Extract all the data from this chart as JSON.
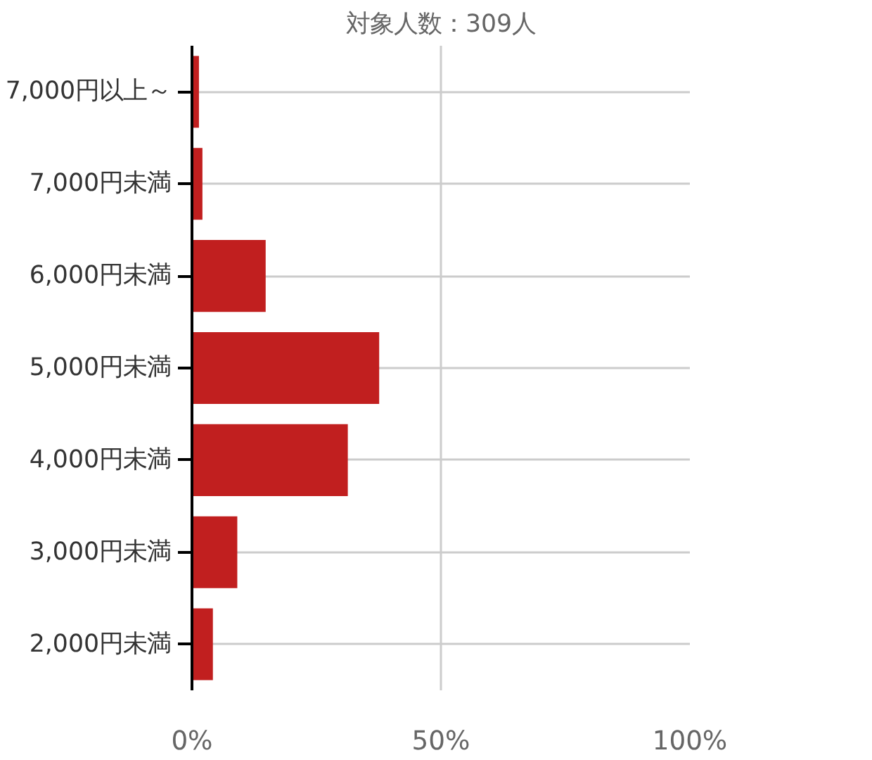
{
  "chart_data": {
    "type": "bar",
    "orientation": "horizontal",
    "title": "対象人数：309人",
    "categories": [
      "7,000円以上～",
      "7,000円未満",
      "6,000円未満",
      "5,000円未満",
      "4,000円未満",
      "3,000円未満",
      "2,000円未満"
    ],
    "values": [
      1.4,
      2.1,
      14.8,
      37.6,
      31.3,
      9.1,
      4.2
    ],
    "color": "#c11f1f",
    "xlim": [
      0,
      100
    ],
    "xticks": [
      {
        "value": 0,
        "label": "0%"
      },
      {
        "value": 50,
        "label": "50%"
      },
      {
        "value": 100,
        "label": "100%"
      }
    ],
    "grid": true
  }
}
